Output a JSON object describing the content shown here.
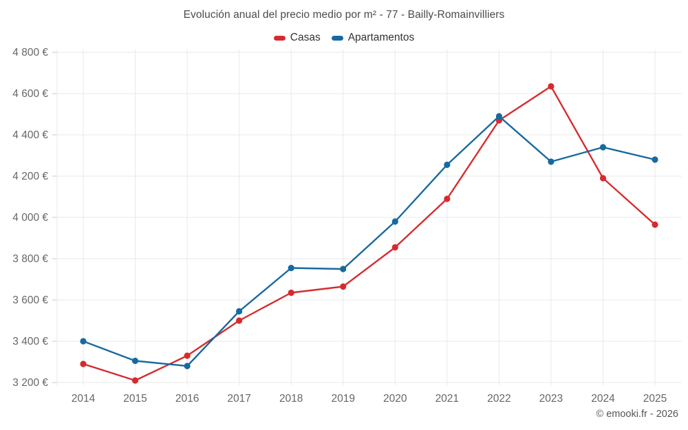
{
  "footer": {
    "credit": "© emooki.fr - 2026"
  },
  "chart_data": {
    "type": "line",
    "title": "Evolución anual del precio medio por m² - 77 - Bailly-Romainvilliers",
    "categories": [
      "2014",
      "2015",
      "2016",
      "2017",
      "2018",
      "2019",
      "2020",
      "2021",
      "2022",
      "2023",
      "2024",
      "2025"
    ],
    "series": [
      {
        "name": "Casas",
        "color": "#d62b2e",
        "values": [
          3290,
          3210,
          3330,
          3500,
          3635,
          3665,
          3855,
          4090,
          4470,
          4635,
          4190,
          3965
        ]
      },
      {
        "name": "Apartamentos",
        "color": "#17699f",
        "values": [
          3400,
          3305,
          3280,
          3545,
          3755,
          3750,
          3980,
          4255,
          4490,
          4270,
          4340,
          4280
        ]
      }
    ],
    "ylabel": "",
    "xlabel": "",
    "ylim": [
      3200,
      4800
    ],
    "ytick_values": [
      3200,
      3400,
      3600,
      3800,
      4000,
      4200,
      4400,
      4600,
      4800
    ],
    "ytick_labels": [
      "3 200 €",
      "3 400 €",
      "3 600 €",
      "3 800 €",
      "4 000 €",
      "4 200 €",
      "4 400 €",
      "4 600 €",
      "4 800 €"
    ],
    "grid": true,
    "legend_position": "top",
    "colors": {
      "grid_line": "#e8e8e8",
      "tick_mark": "#c9c9c9",
      "axis_text": "#666666",
      "title_text": "#4a4a4a",
      "legend_text": "#333333",
      "footer_text": "#555555",
      "background": "#ffffff"
    }
  }
}
